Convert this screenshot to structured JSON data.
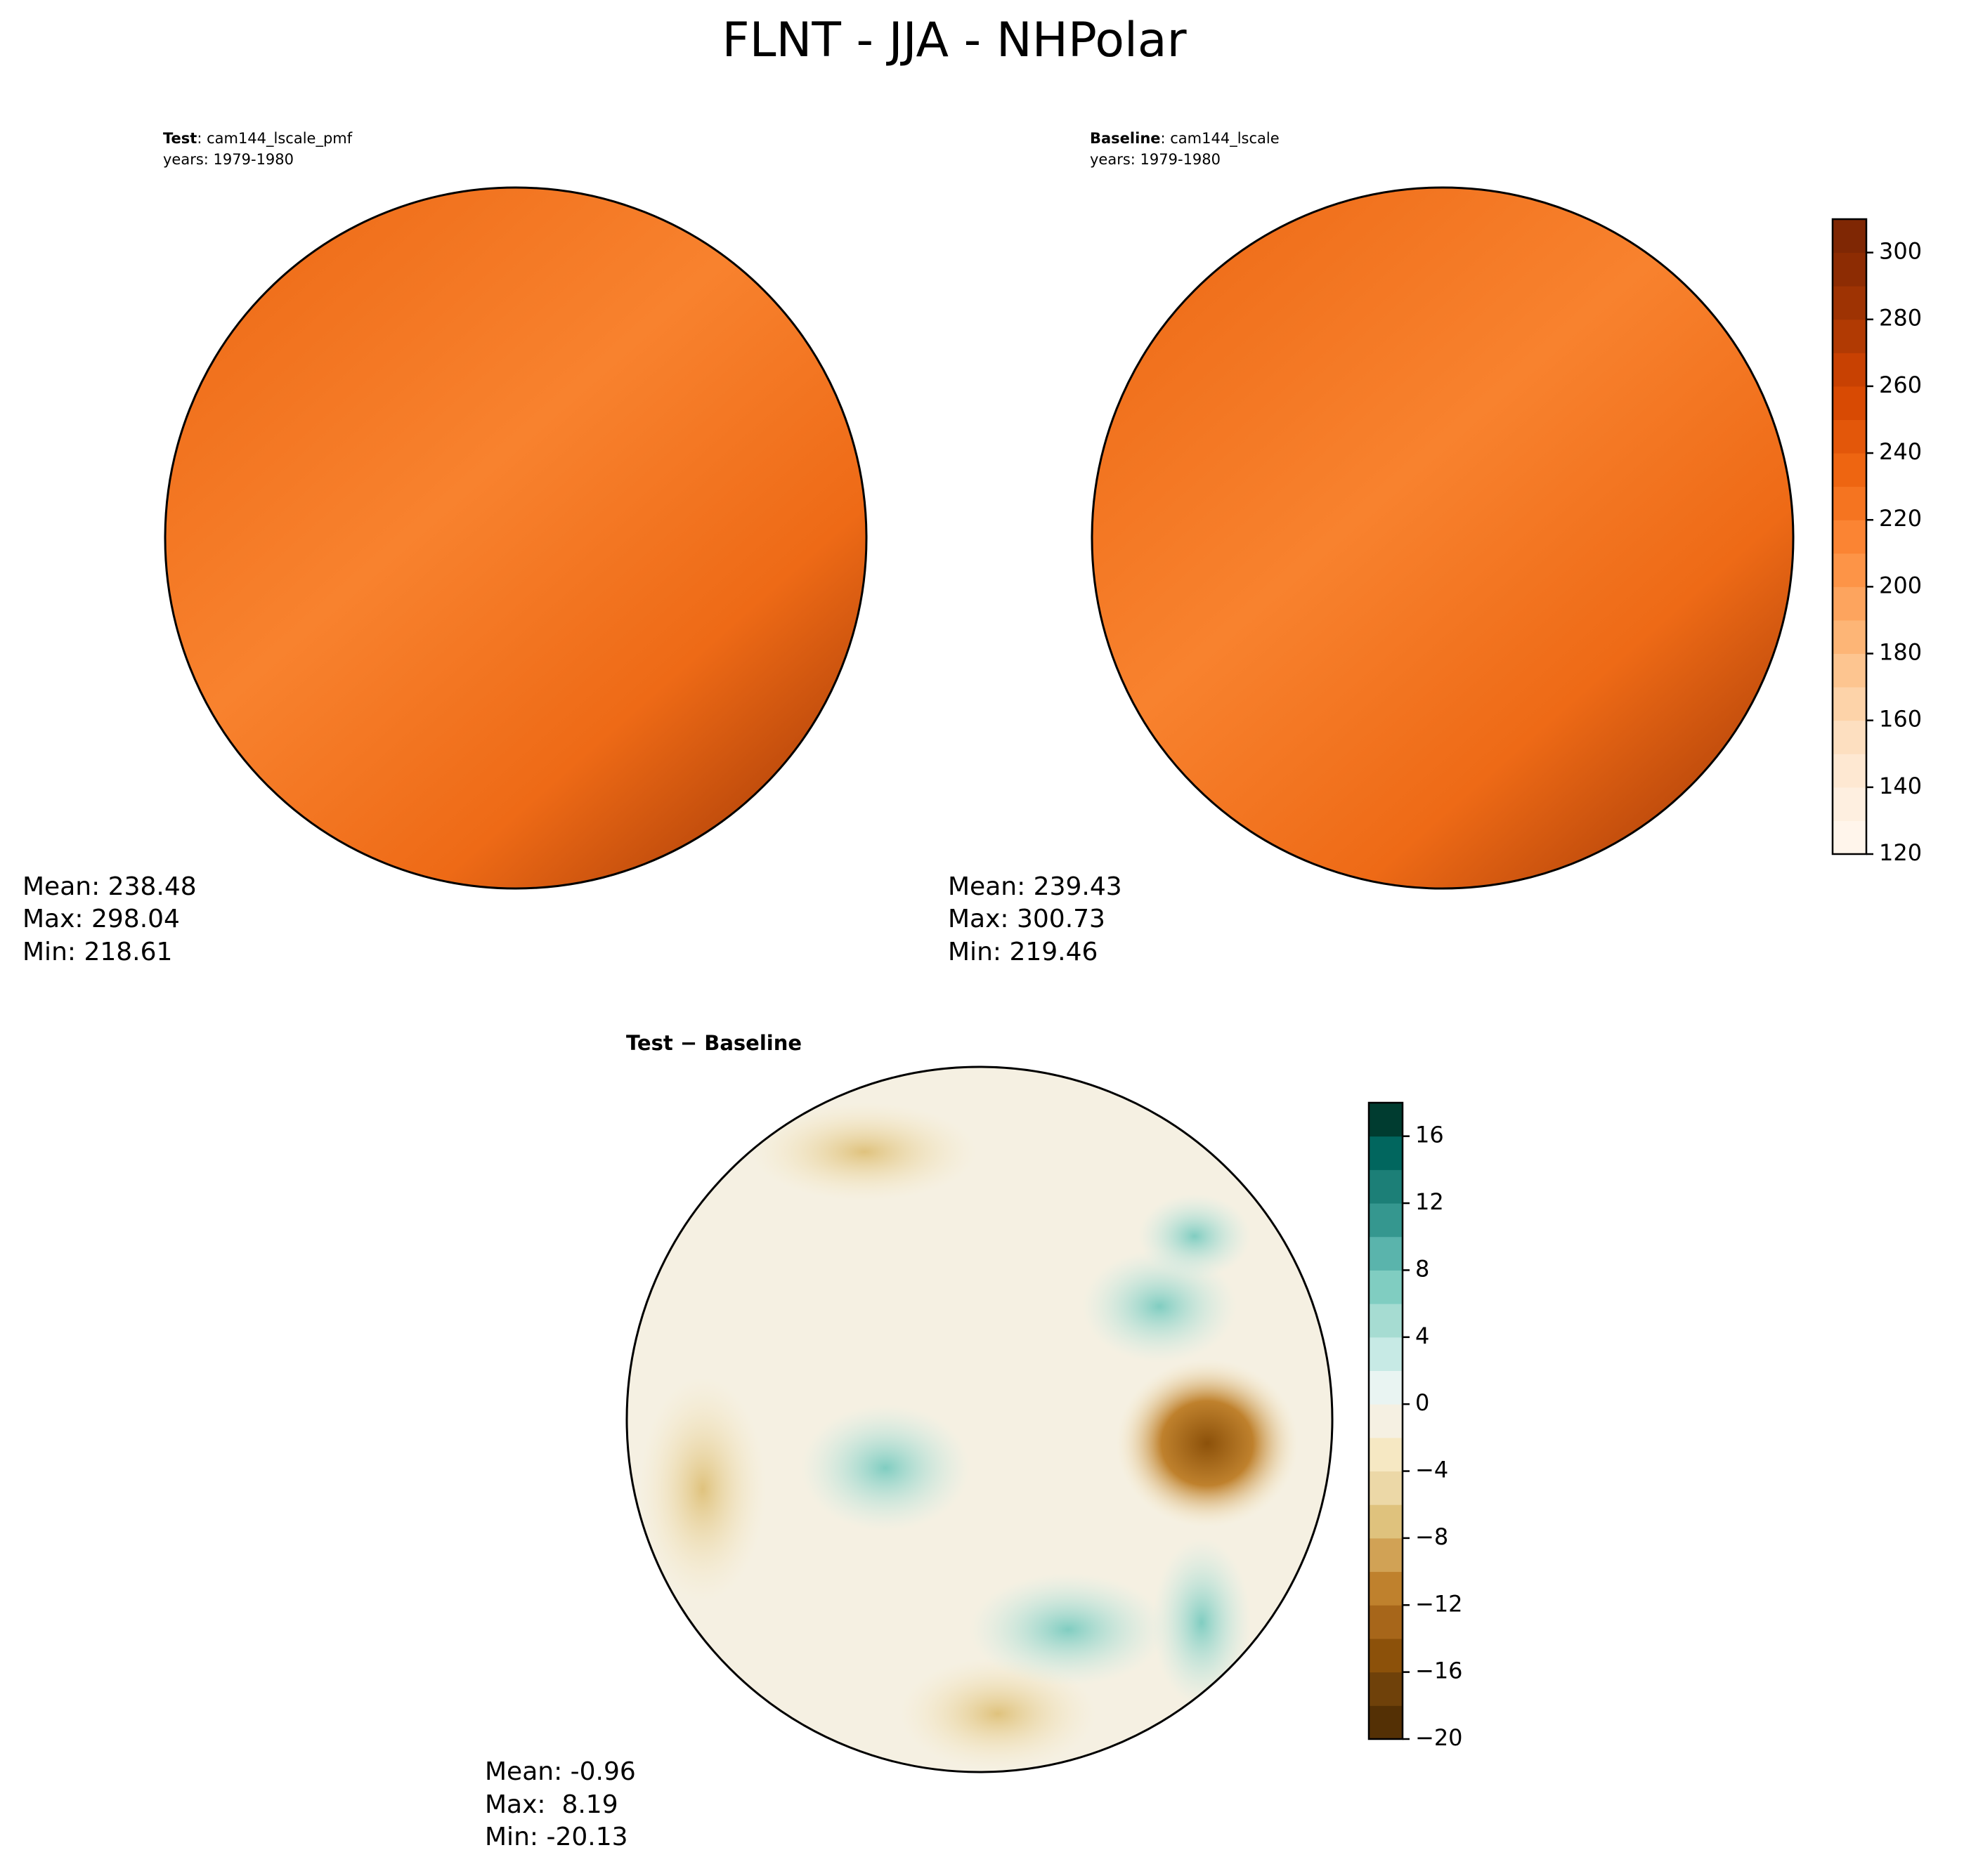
{
  "title": "FLNT - JJA - NHPolar",
  "panels": [
    {
      "name": "Test",
      "text": ": cam144_lscale_pmf",
      "years": "years: 1979-1980",
      "stats": [
        "Mean: 238.48",
        "Max: 298.04",
        "Min: 218.61"
      ]
    },
    {
      "name": "Baseline",
      "text": ": cam144_lscale",
      "years": "years: 1979-1980",
      "stats": [
        "Mean: 239.43",
        "Max: 300.73",
        "Min: 219.46"
      ]
    },
    {
      "name": "Test − Baseline",
      "stats": [
        "Mean: -0.96",
        "Max:  8.19",
        "Min: -20.13"
      ]
    }
  ],
  "colorbars": [
    {
      "lim": [
        120,
        310
      ],
      "ticks": [
        120,
        140,
        160,
        180,
        200,
        220,
        240,
        260,
        280,
        300
      ],
      "colors": [
        "#fff5eb",
        "#feefe0",
        "#fee8d2",
        "#fddfc0",
        "#fdd3a9",
        "#fdc590",
        "#fdb576",
        "#fda45e",
        "#fd9447",
        "#fb8433",
        "#f57420",
        "#ee6511",
        "#e3570a",
        "#d84a03",
        "#c84102",
        "#b13a03",
        "#9e3303",
        "#8d2c03",
        "#7f2704"
      ]
    },
    {
      "lim": [
        -20,
        18
      ],
      "ticks": [
        {
          "value": -20,
          "label": "−20"
        },
        {
          "value": -16,
          "label": "−16"
        },
        {
          "value": -12,
          "label": "−12"
        },
        {
          "value": -8,
          "label": "−8"
        },
        {
          "value": -4,
          "label": "−4"
        },
        0,
        4,
        8,
        12,
        16
      ],
      "colors": [
        "#543005",
        "#6f410a",
        "#8c510a",
        "#a7661a",
        "#bf812d",
        "#d1a255",
        "#dfc27d",
        "#ecd8a7",
        "#f6e8c3",
        "#f5f0e2",
        "#e9f4f2",
        "#c7eae5",
        "#a6dcd2",
        "#80cdc1",
        "#5ab4ac",
        "#35978f",
        "#1c7f77",
        "#01665e",
        "#003c30"
      ]
    }
  ]
}
